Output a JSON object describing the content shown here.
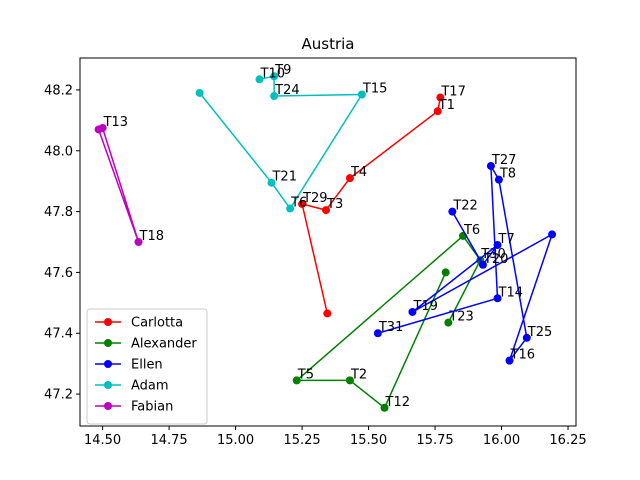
{
  "chart_data": {
    "type": "line",
    "title": "Austria",
    "xlabel": "",
    "ylabel": "",
    "xlim": [
      14.415,
      16.28
    ],
    "ylim": [
      47.095,
      48.305
    ],
    "xticks": [
      14.5,
      14.75,
      15.0,
      15.25,
      15.5,
      15.75,
      16.0,
      16.25
    ],
    "xtick_labels": [
      "14.50",
      "14.75",
      "15.00",
      "15.25",
      "15.50",
      "15.75",
      "16.00",
      "16.25"
    ],
    "yticks": [
      47.2,
      47.4,
      47.6,
      47.8,
      48.0,
      48.2
    ],
    "ytick_labels": [
      "47.2",
      "47.4",
      "47.6",
      "47.8",
      "48.0",
      "48.2"
    ],
    "grid": false,
    "legend_position": "lower-left",
    "series": [
      {
        "name": "Carlotta",
        "color": "#ff0000",
        "points": [
          {
            "label": "T17",
            "x": 15.77,
            "y": 48.175
          },
          {
            "label": "T1",
            "x": 15.76,
            "y": 48.13
          },
          {
            "label": "T4",
            "x": 15.43,
            "y": 47.91
          },
          {
            "label": "T3",
            "x": 15.34,
            "y": 47.805
          },
          {
            "label": "T29",
            "x": 15.25,
            "y": 47.825
          },
          {
            "label": "",
            "x": 15.345,
            "y": 47.465
          }
        ]
      },
      {
        "name": "Alexander",
        "color": "#008000",
        "points": [
          {
            "label": "",
            "x": 15.79,
            "y": 47.6
          },
          {
            "label": "T12",
            "x": 15.56,
            "y": 47.155
          },
          {
            "label": "T2",
            "x": 15.43,
            "y": 47.245
          },
          {
            "label": "T5",
            "x": 15.23,
            "y": 47.245
          },
          {
            "label": "T6",
            "x": 15.855,
            "y": 47.72
          },
          {
            "label": "T30",
            "x": 15.92,
            "y": 47.64
          },
          {
            "label": "T23",
            "x": 15.8,
            "y": 47.435
          }
        ]
      },
      {
        "name": "Ellen",
        "color": "#0000ff",
        "points": [
          {
            "label": "T22",
            "x": 15.815,
            "y": 47.8
          },
          {
            "label": "T20",
            "x": 15.93,
            "y": 47.625
          },
          {
            "label": "T7",
            "x": 15.985,
            "y": 47.69
          },
          {
            "label": "T19",
            "x": 15.665,
            "y": 47.47
          },
          {
            "label": "",
            "x": 16.19,
            "y": 47.725
          },
          {
            "label": "T16",
            "x": 16.03,
            "y": 47.31
          },
          {
            "label": "T25",
            "x": 16.095,
            "y": 47.385
          },
          {
            "label": "T8",
            "x": 15.99,
            "y": 47.905
          },
          {
            "label": "T27",
            "x": 15.96,
            "y": 47.95
          },
          {
            "label": "T14",
            "x": 15.985,
            "y": 47.515
          },
          {
            "label": "T31",
            "x": 15.535,
            "y": 47.4
          }
        ]
      },
      {
        "name": "Adam",
        "color": "#00bfbf",
        "points": [
          {
            "label": "T10",
            "x": 15.09,
            "y": 48.235
          },
          {
            "label": "T9",
            "x": 15.145,
            "y": 48.245
          },
          {
            "label": "T24",
            "x": 15.145,
            "y": 48.18
          },
          {
            "label": "T15",
            "x": 15.475,
            "y": 48.185
          },
          {
            "label": "T6",
            "x": 15.205,
            "y": 47.81
          },
          {
            "label": "T21",
            "x": 15.135,
            "y": 47.895
          },
          {
            "label": "",
            "x": 14.865,
            "y": 48.19
          }
        ]
      },
      {
        "name": "Fabian",
        "color": "#bf00bf",
        "points": [
          {
            "label": "T13",
            "x": 14.5,
            "y": 48.075
          },
          {
            "label": "T18",
            "x": 14.635,
            "y": 47.7
          },
          {
            "label": "",
            "x": 14.485,
            "y": 48.07
          }
        ]
      }
    ]
  }
}
